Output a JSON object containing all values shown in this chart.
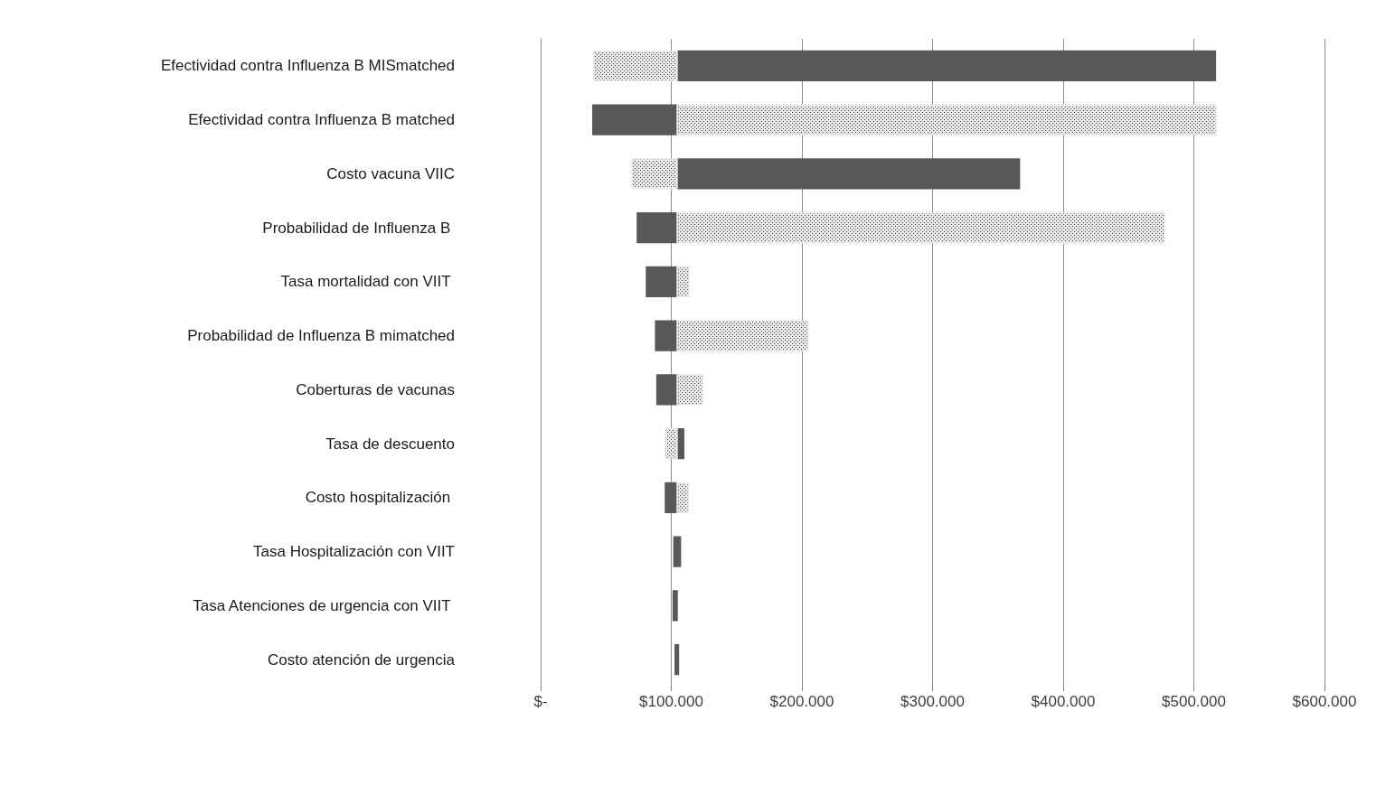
{
  "chart_data": {
    "type": "bar",
    "orientation": "horizontal",
    "categories": [
      "Efectividad contra Influenza B MISmatched",
      "Efectividad contra Influenza B matched",
      "Costo vacuna VIIC",
      "Probabilidad de Influenza B ",
      "Tasa mortalidad con VIIT ",
      "Probabilidad de Influenza B mimatched",
      "Coberturas de vacunas",
      "Tasa de descuento",
      "Costo hospitalización ",
      "Tasa Hospitalización con VIIT",
      "Tasa Atenciones de urgencia con VIIT ",
      "Costo atención de urgencia"
    ],
    "series": [
      {
        "color": "#595959",
        "base": [
          104500,
          40000,
          104500,
          74000,
          81000,
          88000,
          89000,
          104500,
          95500,
          102000,
          101500,
          103000
        ],
        "values": [
          412000,
          64500,
          262000,
          30500,
          23500,
          16500,
          15500,
          5000,
          9000,
          5000,
          3000,
          2500
        ]
      },
      {
        "color": "#e8e8e8",
        "base": [
          40500,
          104500,
          70000,
          104500,
          104500,
          104500,
          104500,
          95500,
          104500,
          null,
          null,
          null
        ],
        "values": [
          64000,
          412500,
          34500,
          373000,
          9000,
          100000,
          19500,
          9000,
          8500,
          null,
          null,
          null
        ]
      }
    ],
    "xlim": [
      0,
      600000
    ],
    "xticks": [
      {
        "value": 0,
        "label": "$-"
      },
      {
        "value": 100000,
        "label": "$100.000"
      },
      {
        "value": 200000,
        "label": "$200.000"
      },
      {
        "value": 300000,
        "label": "$300.000"
      },
      {
        "value": 400000,
        "label": "$400.000"
      },
      {
        "value": 500000,
        "label": "$500.000"
      },
      {
        "value": 600000,
        "label": "$600.000"
      }
    ],
    "grid": "x"
  }
}
